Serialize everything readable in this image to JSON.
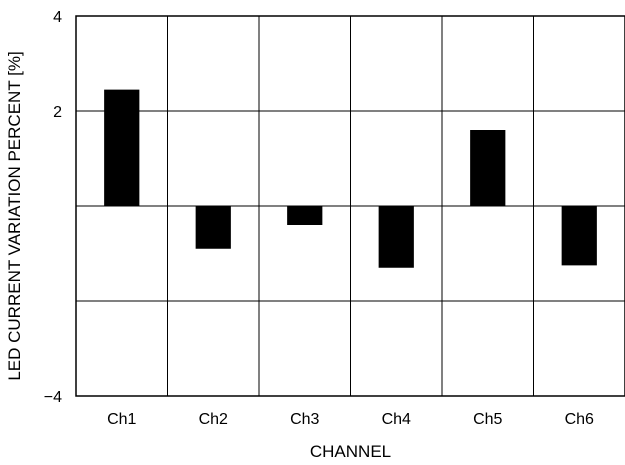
{
  "chart_data": {
    "type": "bar",
    "categories": [
      "Ch1",
      "Ch2",
      "Ch3",
      "Ch4",
      "Ch5",
      "Ch6"
    ],
    "values": [
      2.45,
      -0.9,
      -0.4,
      -1.3,
      1.6,
      -1.25
    ],
    "xlabel": "CHANNEL",
    "ylabel": "LED CURRENT VARIATION PERCENT [%]",
    "ylim": [
      -4,
      4
    ],
    "y_ticks": [
      -4,
      2,
      4
    ],
    "y_tick_labels": [
      "−4",
      "2",
      "4"
    ],
    "grid": true,
    "bar_color": "#000000"
  }
}
